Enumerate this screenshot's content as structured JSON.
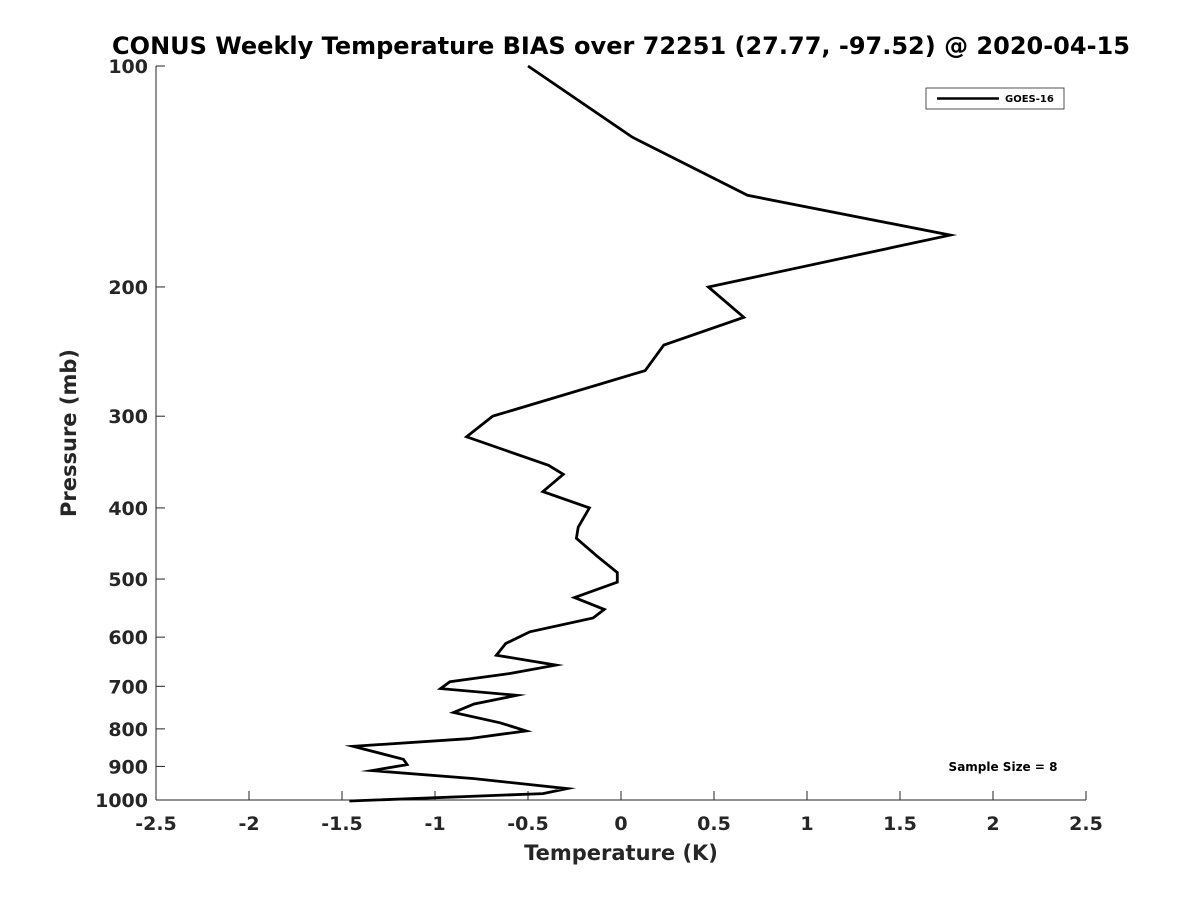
{
  "chart_data": {
    "type": "line",
    "title": "CONUS Weekly Temperature BIAS over 72251 (27.77, -97.52) @ 2020-04-15",
    "xlabel": "Temperature (K)",
    "ylabel": "Pressure (mb)",
    "xlim": [
      -2.5,
      2.5
    ],
    "ylim": [
      100,
      1000
    ],
    "y_scale": "log",
    "y_reversed": true,
    "x_ticks": [
      -2.5,
      -2,
      -1.5,
      -1,
      -0.5,
      0,
      0.5,
      1,
      1.5,
      2,
      2.5
    ],
    "x_tick_labels": [
      "-2.5",
      "-2",
      "-1.5",
      "-1",
      "-0.5",
      "0",
      "0.5",
      "1",
      "1.5",
      "2",
      "2.5"
    ],
    "y_ticks": [
      100,
      200,
      300,
      400,
      500,
      600,
      700,
      800,
      900,
      1000
    ],
    "y_tick_labels": [
      "100",
      "200",
      "300",
      "400",
      "500",
      "600",
      "700",
      "800",
      "900",
      "1000"
    ],
    "grid": false,
    "legend_position": "top-right",
    "color": "#000000",
    "series": [
      {
        "name": "GOES-16",
        "color": "#000000",
        "points": [
          {
            "x": -0.5,
            "y": 100
          },
          {
            "x": 0.06,
            "y": 125
          },
          {
            "x": 0.68,
            "y": 150
          },
          {
            "x": 1.77,
            "y": 170
          },
          {
            "x": 0.47,
            "y": 200
          },
          {
            "x": 0.66,
            "y": 220
          },
          {
            "x": 0.23,
            "y": 240
          },
          {
            "x": 0.13,
            "y": 260
          },
          {
            "x": -0.69,
            "y": 300
          },
          {
            "x": -0.83,
            "y": 320
          },
          {
            "x": -0.39,
            "y": 350
          },
          {
            "x": -0.31,
            "y": 360
          },
          {
            "x": -0.42,
            "y": 380
          },
          {
            "x": -0.17,
            "y": 400
          },
          {
            "x": -0.23,
            "y": 425
          },
          {
            "x": -0.24,
            "y": 440
          },
          {
            "x": -0.13,
            "y": 465
          },
          {
            "x": -0.02,
            "y": 490
          },
          {
            "x": -0.02,
            "y": 505
          },
          {
            "x": -0.25,
            "y": 530
          },
          {
            "x": -0.09,
            "y": 550
          },
          {
            "x": -0.15,
            "y": 565
          },
          {
            "x": -0.49,
            "y": 590
          },
          {
            "x": -0.62,
            "y": 612
          },
          {
            "x": -0.67,
            "y": 635
          },
          {
            "x": -0.35,
            "y": 655
          },
          {
            "x": -0.59,
            "y": 672
          },
          {
            "x": -0.92,
            "y": 690
          },
          {
            "x": -0.97,
            "y": 705
          },
          {
            "x": -0.56,
            "y": 720
          },
          {
            "x": -0.79,
            "y": 740
          },
          {
            "x": -0.9,
            "y": 760
          },
          {
            "x": -0.65,
            "y": 785
          },
          {
            "x": -0.51,
            "y": 805
          },
          {
            "x": -0.82,
            "y": 825
          },
          {
            "x": -1.44,
            "y": 845
          },
          {
            "x": -1.17,
            "y": 880
          },
          {
            "x": -1.15,
            "y": 895
          },
          {
            "x": -1.34,
            "y": 912
          },
          {
            "x": -0.79,
            "y": 935
          },
          {
            "x": -0.29,
            "y": 965
          },
          {
            "x": -0.42,
            "y": 980
          },
          {
            "x": -1.46,
            "y": 1003
          }
        ]
      }
    ],
    "annotations": [
      {
        "text": "Sample Size = 8",
        "position": "bottom-right"
      }
    ]
  }
}
